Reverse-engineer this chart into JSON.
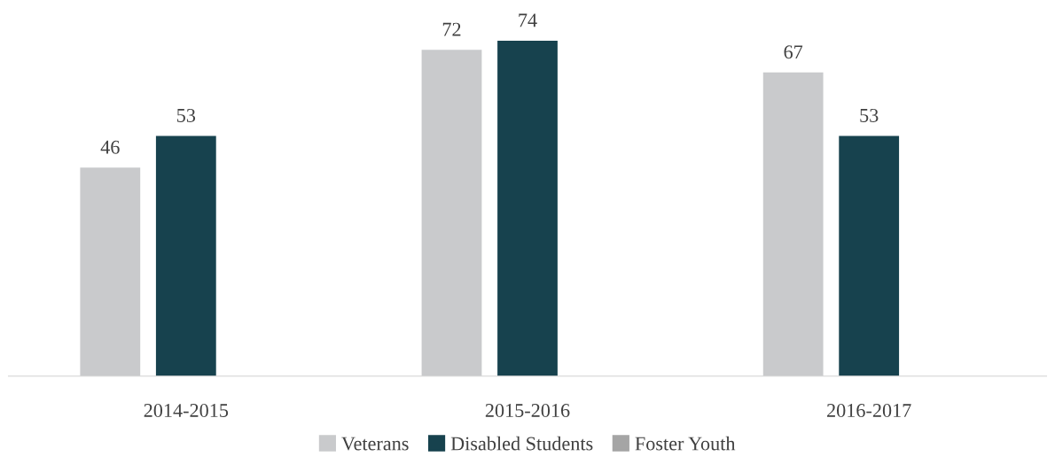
{
  "chart_data": {
    "type": "bar",
    "categories": [
      "2014-2015",
      "2015-2016",
      "2016-2017"
    ],
    "series": [
      {
        "name": "Veterans",
        "color": "#c9cacc",
        "values": [
          46,
          72,
          67
        ]
      },
      {
        "name": "Disabled Students",
        "color": "#17424e",
        "values": [
          53,
          74,
          53
        ]
      },
      {
        "name": "Foster Youth",
        "color": "#a5a5a5",
        "values": [
          null,
          null,
          null
        ]
      }
    ],
    "tick_labels": "x",
    "data_labels": true,
    "grid": false,
    "legend": "bottom"
  }
}
